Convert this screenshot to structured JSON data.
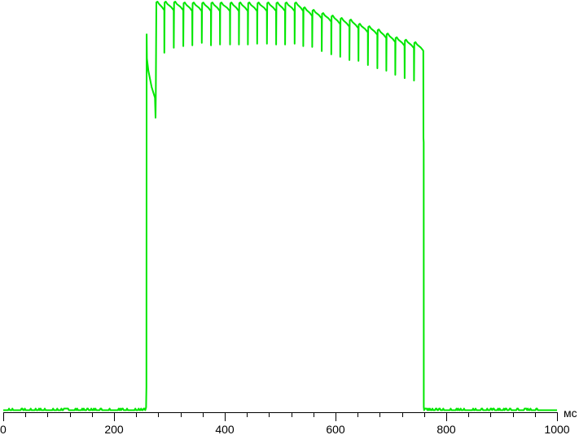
{
  "chart_data": {
    "type": "line",
    "title": "",
    "xlabel": "",
    "x_unit": "мс",
    "ylabel": "",
    "xlim": [
      0,
      1000
    ],
    "ylim_level": [
      0,
      100
    ],
    "x_ticks_major": [
      0,
      200,
      400,
      600,
      800,
      1000
    ],
    "x_tick_labels": [
      "0",
      "200",
      "400",
      "600",
      "800",
      "1000"
    ],
    "x_tick_minor_step": 40,
    "grid": false,
    "legend": "none",
    "line_color": "#00e600",
    "axis_color": "#000000",
    "baseline_level": 0.3,
    "on_time_ms": 258,
    "off_time_ms": 759,
    "startup": {
      "spike_level": 92.2,
      "initial_level": 86.3,
      "decay_to_level": 76.7,
      "dip_level": 71.8,
      "first_peak_time_ms": 276.5
    },
    "cycle_troughs_ms": [
      290.7,
      307.8,
      325,
      341.2,
      358.4,
      375,
      391.2,
      409.3,
      425.4,
      441.6,
      458.4,
      476,
      492.6,
      508.8,
      526,
      541.6,
      557.8,
      575,
      592.2,
      608.4,
      625,
      641.2,
      658.4,
      675.4,
      691.6,
      707.8,
      724.6,
      741.6
    ],
    "cycle_trough_levels": [
      87.7,
      88.9,
      89.3,
      89.5,
      90.1,
      89.5,
      89.7,
      89.7,
      89.7,
      89.7,
      89.9,
      89.9,
      89.7,
      89.7,
      89.9,
      89.3,
      89.1,
      88.1,
      87.3,
      86.7,
      85.9,
      85.7,
      84.7,
      83.9,
      83.3,
      82.3,
      81.5,
      80.9
    ],
    "cycle_peak_levels": [
      100,
      100,
      100,
      99.8,
      99.8,
      99.8,
      99.8,
      99.8,
      99.8,
      99.8,
      99.8,
      99.8,
      99.8,
      99.8,
      99.8,
      99.8,
      98.6,
      98,
      97.2,
      96.6,
      96,
      95.6,
      94.6,
      94,
      93.2,
      92.2,
      91.3,
      90.7,
      90.1
    ],
    "shutdown_step_level": 66.8
  }
}
